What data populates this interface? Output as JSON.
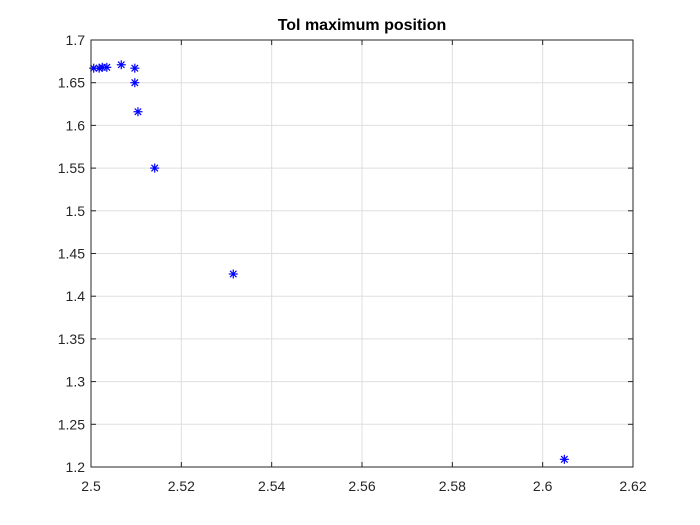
{
  "chart_data": {
    "type": "scatter",
    "title": "Tol maximum position",
    "xlabel": "",
    "ylabel": "",
    "xlim": [
      2.5,
      2.62
    ],
    "ylim": [
      1.2,
      1.7
    ],
    "xticks": [
      2.5,
      2.52,
      2.54,
      2.56,
      2.58,
      2.6,
      2.62
    ],
    "xtick_labels": [
      "2.5",
      "2.52",
      "2.54",
      "2.56",
      "2.58",
      "2.6",
      "2.62"
    ],
    "yticks": [
      1.2,
      1.25,
      1.3,
      1.35,
      1.4,
      1.45,
      1.5,
      1.55,
      1.6,
      1.65,
      1.7
    ],
    "ytick_labels": [
      "1.2",
      "1.25",
      "1.3",
      "1.35",
      "1.4",
      "1.45",
      "1.5",
      "1.55",
      "1.6",
      "1.65",
      "1.7"
    ],
    "grid": true,
    "marker": "asterisk",
    "marker_color": "#0000ff",
    "points": [
      {
        "x": 2.5006,
        "y": 1.667
      },
      {
        "x": 2.5018,
        "y": 1.667
      },
      {
        "x": 2.5025,
        "y": 1.668
      },
      {
        "x": 2.5035,
        "y": 1.668
      },
      {
        "x": 2.5067,
        "y": 1.671
      },
      {
        "x": 2.5097,
        "y": 1.667
      },
      {
        "x": 2.5097,
        "y": 1.65
      },
      {
        "x": 2.5104,
        "y": 1.616
      },
      {
        "x": 2.5141,
        "y": 1.55
      },
      {
        "x": 2.5315,
        "y": 1.426
      },
      {
        "x": 2.6048,
        "y": 1.209
      }
    ]
  }
}
